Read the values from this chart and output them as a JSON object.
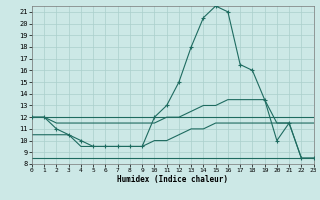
{
  "xlabel": "Humidex (Indice chaleur)",
  "bg_color": "#cce8e6",
  "grid_color": "#aacfcc",
  "line_color": "#1e6b60",
  "xlim": [
    0,
    23
  ],
  "ylim": [
    8,
    21.5
  ],
  "xticks": [
    0,
    1,
    2,
    3,
    4,
    5,
    6,
    7,
    8,
    9,
    10,
    11,
    12,
    13,
    14,
    15,
    16,
    17,
    18,
    19,
    20,
    21,
    22,
    23
  ],
  "yticks": [
    8,
    9,
    10,
    11,
    12,
    13,
    14,
    15,
    16,
    17,
    18,
    19,
    20,
    21
  ],
  "series": [
    {
      "x": [
        0,
        1,
        2,
        3,
        4,
        5,
        6,
        7,
        8,
        9,
        10,
        11,
        12,
        13,
        14,
        15,
        16,
        17,
        18,
        19,
        20,
        21,
        22,
        23
      ],
      "y": [
        12,
        12,
        12,
        12,
        12,
        12,
        12,
        12,
        12,
        12,
        12,
        12,
        12,
        12,
        12,
        12,
        12,
        12,
        12,
        12,
        12,
        12,
        12,
        12
      ],
      "marker": false
    },
    {
      "x": [
        0,
        1,
        2,
        3,
        4,
        5,
        6,
        7,
        8,
        9,
        10,
        11,
        12,
        13,
        14,
        15,
        16,
        17,
        18,
        19,
        20,
        21,
        22,
        23
      ],
      "y": [
        12,
        12,
        11.5,
        11.5,
        11.5,
        11.5,
        11.5,
        11.5,
        11.5,
        11.5,
        11.5,
        12,
        12,
        12.5,
        13,
        13,
        13.5,
        13.5,
        13.5,
        13.5,
        11.5,
        11.5,
        11.5,
        11.5
      ],
      "marker": false
    },
    {
      "x": [
        0,
        1,
        2,
        3,
        4,
        5,
        6,
        7,
        8,
        9,
        10,
        11,
        12,
        13,
        14,
        15,
        16,
        17,
        18,
        19,
        20,
        21,
        22,
        23
      ],
      "y": [
        10.5,
        10.5,
        10.5,
        10.5,
        9.5,
        9.5,
        9.5,
        9.5,
        9.5,
        9.5,
        10,
        10,
        10.5,
        11,
        11,
        11.5,
        11.5,
        11.5,
        11.5,
        11.5,
        11.5,
        11.5,
        8.5,
        8.5
      ],
      "marker": false
    },
    {
      "x": [
        0,
        1,
        2,
        3,
        4,
        5,
        6,
        7,
        8,
        9,
        10,
        11,
        12,
        13,
        14,
        15,
        16,
        17,
        18,
        19,
        20,
        21,
        22,
        23
      ],
      "y": [
        8.5,
        8.5,
        8.5,
        8.5,
        8.5,
        8.5,
        8.5,
        8.5,
        8.5,
        8.5,
        8.5,
        8.5,
        8.5,
        8.5,
        8.5,
        8.5,
        8.5,
        8.5,
        8.5,
        8.5,
        8.5,
        8.5,
        8.5,
        8.5
      ],
      "marker": false
    },
    {
      "x": [
        0,
        1,
        2,
        3,
        4,
        5,
        6,
        7,
        8,
        9,
        10,
        11,
        12,
        13,
        14,
        15,
        16,
        17,
        18,
        19,
        20,
        21,
        22,
        23
      ],
      "y": [
        12,
        12,
        11,
        10.5,
        10,
        9.5,
        9.5,
        9.5,
        9.5,
        9.5,
        12,
        13,
        15,
        18,
        20.5,
        21.5,
        21,
        16.5,
        16,
        13.5,
        10,
        11.5,
        8.5,
        8.5
      ],
      "marker": true
    }
  ]
}
